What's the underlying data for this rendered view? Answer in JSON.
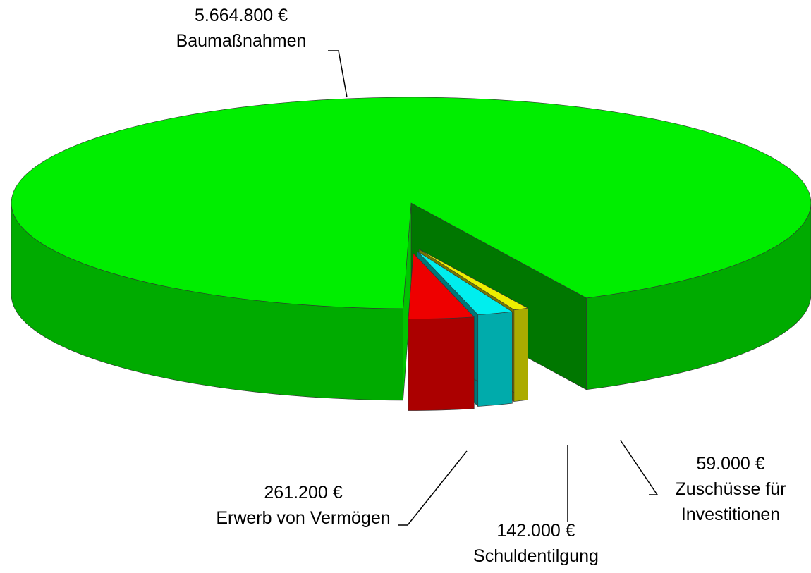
{
  "chart_data": {
    "type": "pie3d",
    "categories": [
      "Baumaßnahmen",
      "Erwerb von Vermögen",
      "Schuldentilgung",
      "Zuschüsse für Investitionen"
    ],
    "values": [
      5664800,
      261200,
      142000,
      59000
    ],
    "value_labels": [
      "5.664.800 €",
      "261.200 €",
      "142.000 €",
      "59.000 €"
    ],
    "colors": [
      "#00ee00",
      "#ee0000",
      "#00eeee",
      "#eeee00"
    ]
  }
}
